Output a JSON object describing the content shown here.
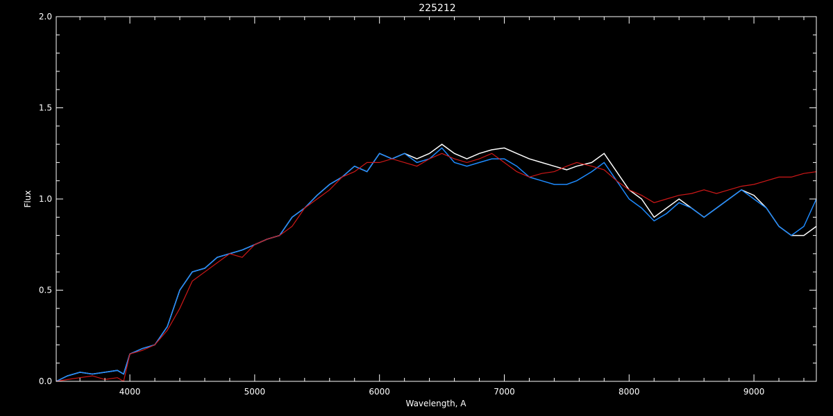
{
  "chart_data": {
    "type": "line",
    "title": "225212",
    "xlabel": "Wavelength, A",
    "ylabel": "Flux",
    "xlim": [
      3410,
      9500
    ],
    "ylim": [
      0,
      2.0
    ],
    "grid": false,
    "background": "#000000",
    "x_ticks": [
      {
        "value": 4000,
        "label": "4000"
      },
      {
        "value": 5000,
        "label": "5000"
      },
      {
        "value": 6000,
        "label": "6000"
      },
      {
        "value": 7000,
        "label": "7000"
      },
      {
        "value": 8000,
        "label": "8000"
      },
      {
        "value": 9000,
        "label": "9000"
      }
    ],
    "y_ticks": [
      {
        "value": 0.0,
        "label": "0.0"
      },
      {
        "value": 0.5,
        "label": "0.5"
      },
      {
        "value": 1.0,
        "label": "1.0"
      },
      {
        "value": 1.5,
        "label": "1.5"
      },
      {
        "value": 2.0,
        "label": "2.0"
      }
    ],
    "series": [
      {
        "color": "#ffffff",
        "role": "observed",
        "x": [
          3410,
          3500,
          3600,
          3700,
          3800,
          3900,
          3950,
          4000,
          4100,
          4200,
          4300,
          4400,
          4500,
          4600,
          4700,
          4800,
          4900,
          5000,
          5100,
          5200,
          5300,
          5400,
          5500,
          5600,
          5700,
          5800,
          5900,
          6000,
          6100,
          6200,
          6300,
          6400,
          6500,
          6600,
          6700,
          6800,
          6900,
          7000,
          7100,
          7200,
          7300,
          7400,
          7500,
          7580,
          7700,
          7800,
          7900,
          8000,
          8100,
          8200,
          8300,
          8400,
          8500,
          8600,
          8700,
          8800,
          8900,
          9000,
          9100,
          9200,
          9300,
          9400,
          9500
        ],
        "y": [
          0.0,
          0.03,
          0.05,
          0.04,
          0.05,
          0.06,
          0.04,
          0.15,
          0.18,
          0.2,
          0.3,
          0.5,
          0.6,
          0.62,
          0.68,
          0.7,
          0.72,
          0.75,
          0.78,
          0.8,
          0.9,
          0.95,
          1.02,
          1.08,
          1.12,
          1.18,
          1.15,
          1.25,
          1.22,
          1.25,
          1.22,
          1.25,
          1.3,
          1.25,
          1.22,
          1.25,
          1.27,
          1.28,
          1.25,
          1.22,
          1.2,
          1.18,
          1.16,
          1.18,
          1.2,
          1.25,
          1.15,
          1.05,
          1.0,
          0.9,
          0.95,
          1.0,
          0.95,
          0.9,
          0.95,
          1.0,
          1.05,
          1.02,
          0.95,
          0.85,
          0.8,
          0.8,
          0.85
        ]
      },
      {
        "color": "#1e8bff",
        "role": "observed-noisy",
        "x": [
          3410,
          3500,
          3600,
          3700,
          3800,
          3900,
          3950,
          4000,
          4100,
          4200,
          4300,
          4400,
          4500,
          4600,
          4700,
          4800,
          4900,
          5000,
          5100,
          5200,
          5300,
          5400,
          5500,
          5600,
          5700,
          5800,
          5900,
          6000,
          6100,
          6200,
          6300,
          6400,
          6500,
          6600,
          6700,
          6800,
          6900,
          7000,
          7100,
          7200,
          7300,
          7400,
          7500,
          7580,
          7700,
          7800,
          7900,
          8000,
          8100,
          8200,
          8300,
          8400,
          8500,
          8600,
          8700,
          8800,
          8900,
          9000,
          9100,
          9200,
          9300,
          9400,
          9500
        ],
        "y": [
          0.0,
          0.03,
          0.05,
          0.04,
          0.05,
          0.06,
          0.04,
          0.15,
          0.18,
          0.2,
          0.3,
          0.5,
          0.6,
          0.62,
          0.68,
          0.7,
          0.72,
          0.75,
          0.78,
          0.8,
          0.9,
          0.95,
          1.02,
          1.08,
          1.12,
          1.18,
          1.15,
          1.25,
          1.22,
          1.25,
          1.2,
          1.22,
          1.28,
          1.2,
          1.18,
          1.2,
          1.22,
          1.22,
          1.18,
          1.12,
          1.1,
          1.08,
          1.08,
          1.1,
          1.15,
          1.2,
          1.1,
          1.0,
          0.95,
          0.88,
          0.92,
          0.98,
          0.95,
          0.9,
          0.95,
          1.0,
          1.05,
          1.0,
          0.95,
          0.85,
          0.8,
          0.85,
          1.0
        ]
      },
      {
        "color": "#d01818",
        "role": "model",
        "x": [
          3410,
          3500,
          3600,
          3700,
          3800,
          3900,
          3950,
          4000,
          4100,
          4200,
          4300,
          4400,
          4500,
          4600,
          4700,
          4800,
          4900,
          5000,
          5100,
          5200,
          5300,
          5400,
          5500,
          5600,
          5700,
          5800,
          5900,
          6000,
          6100,
          6200,
          6300,
          6400,
          6500,
          6600,
          6700,
          6800,
          6900,
          7000,
          7100,
          7200,
          7300,
          7400,
          7500,
          7580,
          7700,
          7800,
          7900,
          8000,
          8100,
          8200,
          8300,
          8400,
          8500,
          8600,
          8700,
          8800,
          8900,
          9000,
          9100,
          9200,
          9300,
          9400,
          9500
        ],
        "y": [
          0.0,
          0.01,
          0.02,
          0.03,
          0.01,
          0.02,
          0.0,
          0.15,
          0.17,
          0.2,
          0.28,
          0.4,
          0.55,
          0.6,
          0.65,
          0.7,
          0.68,
          0.75,
          0.78,
          0.8,
          0.85,
          0.95,
          1.0,
          1.05,
          1.12,
          1.15,
          1.2,
          1.2,
          1.22,
          1.2,
          1.18,
          1.22,
          1.25,
          1.22,
          1.2,
          1.22,
          1.25,
          1.2,
          1.15,
          1.12,
          1.14,
          1.15,
          1.18,
          1.2,
          1.18,
          1.16,
          1.1,
          1.05,
          1.02,
          0.98,
          1.0,
          1.02,
          1.03,
          1.05,
          1.03,
          1.05,
          1.07,
          1.08,
          1.1,
          1.12,
          1.12,
          1.14,
          1.15
        ]
      }
    ]
  }
}
